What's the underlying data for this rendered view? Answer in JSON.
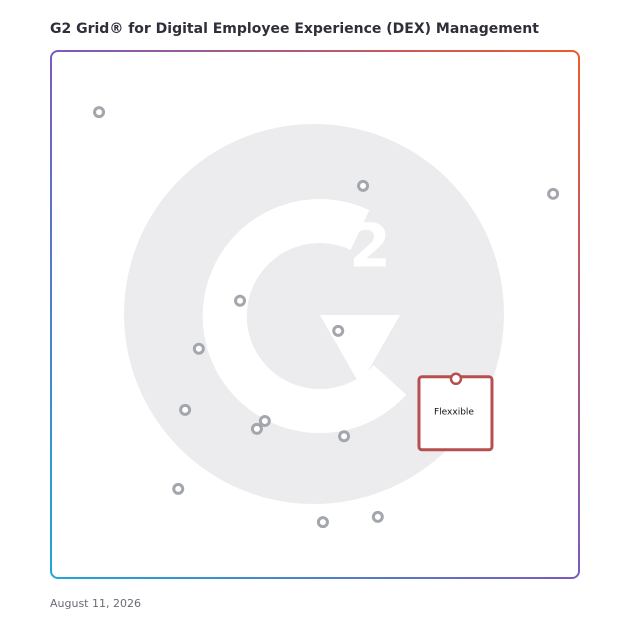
{
  "chart_data": {
    "type": "scatter",
    "title": "G2 Grid® for Digital Employee Experience (DEX) Management",
    "date": "August 11, 2026",
    "xlim": [
      0,
      100
    ],
    "ylim": [
      0,
      100
    ],
    "points": {
      "color": "#a3a7ad",
      "x": [
        9.1,
        59.1,
        95.1,
        35.8,
        54.4,
        28.0,
        25.4,
        40.5,
        39.0,
        55.5,
        24.1,
        61.9,
        51.5
      ],
      "y": [
        88.4,
        74.4,
        72.9,
        52.6,
        46.9,
        43.5,
        31.9,
        29.8,
        28.3,
        26.9,
        16.9,
        11.6,
        10.6
      ]
    },
    "highlight": {
      "label": "Flexxible",
      "color": "#b5504e",
      "x": 76.7,
      "y": 37.8
    }
  }
}
